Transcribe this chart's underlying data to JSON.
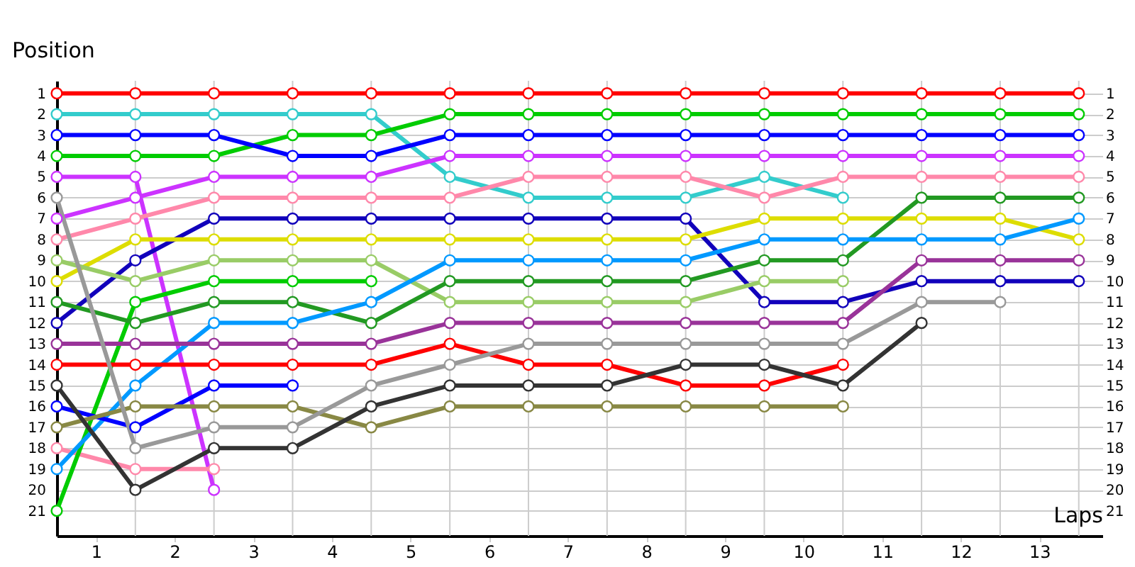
{
  "chart_data": {
    "type": "line",
    "xlabel": "Laps",
    "ylabel": "Position",
    "x": [
      0,
      1,
      2,
      3,
      4,
      5,
      6,
      7,
      8,
      9,
      10,
      11,
      12,
      13
    ],
    "xlim": [
      0,
      13.3
    ],
    "xticks": [
      {
        "value": 1,
        "label": null
      },
      {
        "value": 2,
        "label": null
      },
      {
        "value": 3,
        "label": null
      },
      {
        "value": 4,
        "label": null
      },
      {
        "value": 5,
        "label": null
      },
      {
        "value": 6,
        "label": null
      },
      {
        "value": 7,
        "label": null
      },
      {
        "value": 8,
        "label": null
      },
      {
        "value": 9,
        "label": null
      },
      {
        "value": 10,
        "label": null
      },
      {
        "value": 11,
        "label": null
      },
      {
        "value": 12,
        "label": null
      },
      {
        "value": 13,
        "label": null
      },
      {
        "value": 0.5,
        "label": "1"
      },
      {
        "value": 1.5,
        "label": "2"
      },
      {
        "value": 2.5,
        "label": "3"
      },
      {
        "value": 3.5,
        "label": "4"
      },
      {
        "value": 4.5,
        "label": "5"
      },
      {
        "value": 5.5,
        "label": "6"
      },
      {
        "value": 6.5,
        "label": "7"
      },
      {
        "value": 7.5,
        "label": "8"
      },
      {
        "value": 8.5,
        "label": "9"
      },
      {
        "value": 9.5,
        "label": "10"
      },
      {
        "value": 10.5,
        "label": "11"
      },
      {
        "value": 11.5,
        "label": "12"
      },
      {
        "value": 12.5,
        "label": "13"
      }
    ],
    "ylim": [
      22.2,
      0.4
    ],
    "yticks": [
      1,
      2,
      3,
      4,
      5,
      6,
      7,
      8,
      9,
      10,
      11,
      12,
      13,
      14,
      15,
      16,
      17,
      18,
      19,
      20,
      21
    ],
    "y2lim": [
      22.2,
      0.4
    ],
    "y2ticks": [
      1,
      2,
      3,
      4,
      5,
      6,
      7,
      8,
      9,
      10,
      11,
      12,
      13,
      14,
      15,
      16,
      17,
      18,
      19,
      20,
      21
    ],
    "grid": true,
    "legend": false,
    "marker": "circle",
    "line_style": "solid",
    "series": [
      {
        "color": "#ff0000",
        "values": [
          1,
          1,
          1,
          1,
          1,
          1,
          1,
          1,
          1,
          1,
          1,
          1,
          1,
          1
        ]
      },
      {
        "color": "#33cccc",
        "values": [
          2,
          2,
          2,
          2,
          2,
          5,
          6,
          6,
          6,
          5,
          6,
          null,
          null,
          null
        ]
      },
      {
        "color": "#00cc00",
        "values": [
          4,
          4,
          4,
          3,
          3,
          2,
          2,
          2,
          2,
          2,
          2,
          2,
          2,
          2
        ]
      },
      {
        "color": "#0000ff",
        "values": [
          3,
          3,
          3,
          4,
          4,
          3,
          3,
          3,
          3,
          3,
          3,
          3,
          3,
          3
        ]
      },
      {
        "color": "#cc33ff",
        "values": [
          7,
          6,
          5,
          5,
          5,
          4,
          4,
          4,
          4,
          4,
          4,
          4,
          4,
          4
        ]
      },
      {
        "color": "#cc33ff",
        "values": [
          5,
          5,
          20,
          null,
          null,
          null,
          null,
          null,
          null,
          null,
          null,
          null,
          null,
          null
        ]
      },
      {
        "color": "#ff88aa",
        "values": [
          8,
          7,
          6,
          6,
          6,
          6,
          5,
          5,
          5,
          6,
          5,
          5,
          5,
          5
        ]
      },
      {
        "color": "#ff88aa",
        "values": [
          18,
          19,
          19,
          null,
          null,
          null,
          null,
          null,
          null,
          null,
          null,
          null,
          null,
          null
        ]
      },
      {
        "color": "#1100bb",
        "values": [
          12,
          9,
          7,
          7,
          7,
          7,
          7,
          7,
          7,
          11,
          11,
          10,
          10,
          10
        ]
      },
      {
        "color": "#dddd00",
        "values": [
          10,
          8,
          8,
          8,
          8,
          8,
          8,
          8,
          8,
          7,
          7,
          7,
          7,
          8
        ]
      },
      {
        "color": "#99cc66",
        "values": [
          9,
          10,
          9,
          9,
          9,
          11,
          11,
          11,
          11,
          10,
          10,
          null,
          null,
          null
        ]
      },
      {
        "color": "#00cc00",
        "values": [
          21,
          11,
          10,
          10,
          10,
          null,
          null,
          null,
          null,
          null,
          null,
          null,
          null,
          null
        ]
      },
      {
        "color": "#229922",
        "values": [
          11,
          12,
          11,
          11,
          12,
          10,
          10,
          10,
          10,
          9,
          9,
          6,
          6,
          6
        ]
      },
      {
        "color": "#0099ff",
        "values": [
          19,
          15,
          12,
          12,
          11,
          9,
          9,
          9,
          9,
          8,
          8,
          8,
          8,
          7
        ]
      },
      {
        "color": "#993399",
        "values": [
          13,
          13,
          13,
          13,
          13,
          12,
          12,
          12,
          12,
          12,
          12,
          9,
          9,
          9
        ]
      },
      {
        "color": "#ff0000",
        "values": [
          14,
          14,
          14,
          14,
          14,
          13,
          14,
          14,
          15,
          15,
          14,
          null,
          null,
          null
        ]
      },
      {
        "color": "#0000ff",
        "values": [
          16,
          17,
          15,
          15,
          null,
          null,
          null,
          null,
          null,
          null,
          null,
          null,
          null,
          null
        ]
      },
      {
        "color": "#888844",
        "values": [
          17,
          16,
          16,
          16,
          17,
          16,
          16,
          16,
          16,
          16,
          16,
          null,
          null,
          null
        ]
      },
      {
        "color": "#999999",
        "values": [
          6,
          18,
          17,
          17,
          15,
          14,
          13,
          13,
          13,
          13,
          13,
          11,
          11,
          null
        ]
      },
      {
        "color": "#333333",
        "values": [
          15,
          20,
          18,
          18,
          16,
          15,
          15,
          15,
          14,
          14,
          15,
          12,
          null,
          null
        ]
      }
    ]
  }
}
